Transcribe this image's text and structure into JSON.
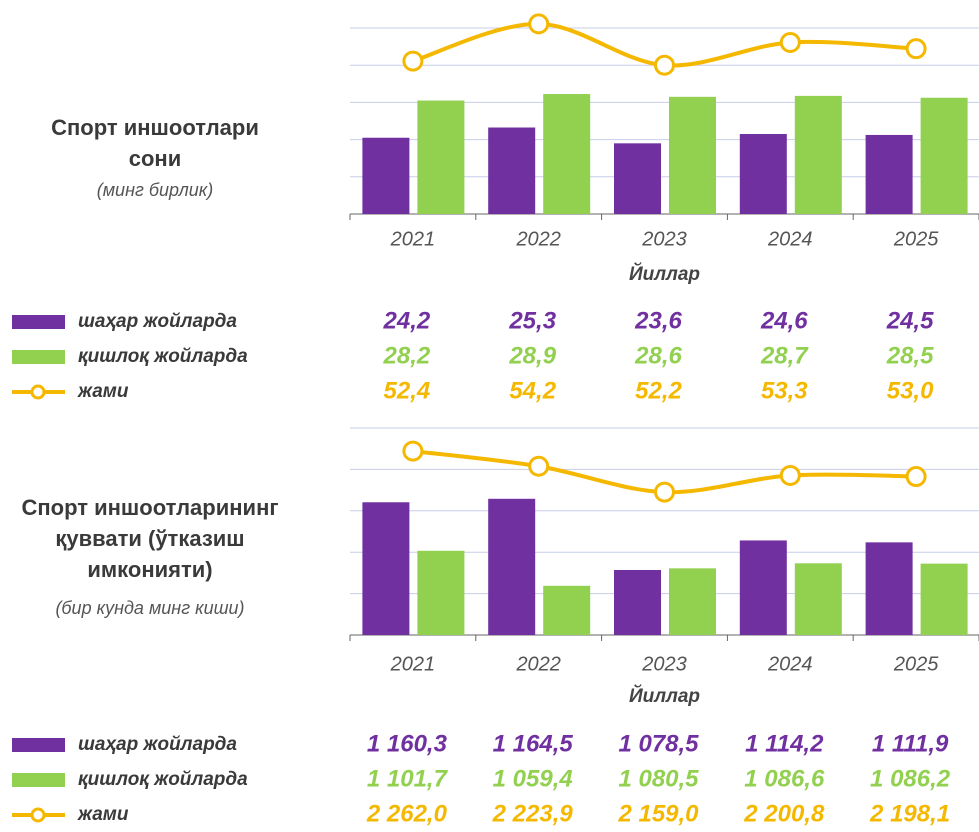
{
  "chart_data": [
    {
      "type": "bar",
      "title": "Спорт иншоотлари сони",
      "subtitle": "(минг бирлик)",
      "xlabel": "Йиллар",
      "categories": [
        "2021",
        "2022",
        "2023",
        "2024",
        "2025"
      ],
      "ylim": [
        16,
        36
      ],
      "yticks": [
        16,
        20,
        24,
        28,
        32,
        36
      ],
      "y2lim": [
        45,
        54
      ],
      "grid": true,
      "series": [
        {
          "name": "шаҳар жойларда",
          "color": "#7030a0",
          "type": "bar",
          "values": [
            24.2,
            25.3,
            23.6,
            24.6,
            24.5
          ],
          "value_labels": [
            "24,2",
            "25,3",
            "23,6",
            "24,6",
            "24,5"
          ]
        },
        {
          "name": "қишлоқ жойларда",
          "color": "#92d050",
          "type": "bar",
          "values": [
            28.2,
            28.9,
            28.6,
            28.7,
            28.5
          ],
          "value_labels": [
            "28,2",
            "28,9",
            "28,6",
            "28,7",
            "28,5"
          ]
        },
        {
          "name": "жами",
          "color": "#f5b800",
          "type": "line",
          "axis": "y2",
          "values": [
            52.4,
            54.2,
            52.2,
            53.3,
            53.0
          ],
          "value_labels": [
            "52,4",
            "54,2",
            "52,2",
            "53,3",
            "53,0"
          ]
        }
      ]
    },
    {
      "type": "bar",
      "title": "Спорт иншоотларининг қуввати (ўтказиш имконияти)",
      "subtitle": "(бир кунда минг киши)",
      "xlabel": "Йиллар",
      "categories": [
        "2021",
        "2022",
        "2023",
        "2024",
        "2025"
      ],
      "ylim": [
        1000,
        1250
      ],
      "yticks": [
        1000,
        1050,
        1100,
        1150,
        1200,
        1250
      ],
      "y2lim": [
        1800,
        2320
      ],
      "grid": true,
      "series": [
        {
          "name": "шаҳар жойларда",
          "color": "#7030a0",
          "type": "bar",
          "values": [
            1160.3,
            1164.5,
            1078.5,
            1114.2,
            1111.9
          ],
          "value_labels": [
            "1 160,3",
            "1 164,5",
            "1 078,5",
            "1 114,2",
            "1 111,9"
          ]
        },
        {
          "name": "қишлоқ жойларда",
          "color": "#92d050",
          "type": "bar",
          "values": [
            1101.7,
            1059.4,
            1080.5,
            1086.6,
            1086.2
          ],
          "value_labels": [
            "1 101,7",
            "1 059,4",
            "1 080,5",
            "1 086,6",
            "1 086,2"
          ]
        },
        {
          "name": "жами",
          "color": "#f5b800",
          "type": "line",
          "axis": "y2",
          "values": [
            2262.0,
            2223.9,
            2159.0,
            2200.8,
            2198.1
          ],
          "value_labels": [
            "2 262,0",
            "2 223,9",
            "2 159,0",
            "2 200,8",
            "2 198,1"
          ]
        }
      ]
    }
  ]
}
